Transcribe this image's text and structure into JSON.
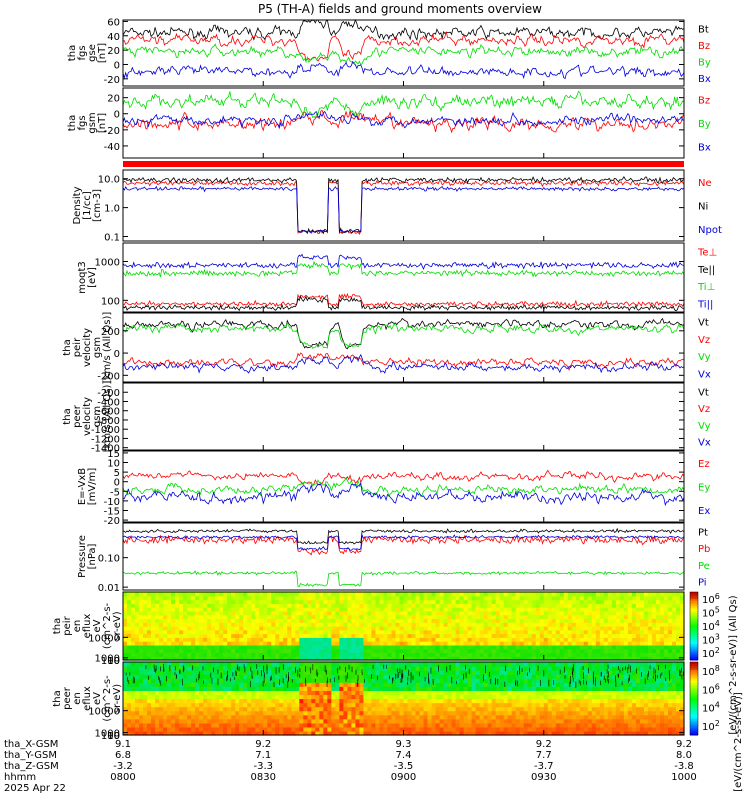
{
  "title": "P5 (TH-A) fields and ground moments overview",
  "chart_data": [
    {
      "id": "fgs_gse",
      "type": "line",
      "ylabel": [
        "tha",
        "fgs",
        "gse",
        "[nT]"
      ],
      "yticks": [
        60,
        40,
        20,
        0,
        -20
      ],
      "ylim": [
        -30,
        62
      ],
      "series": [
        {
          "name": "Bt",
          "color": "#000000",
          "base": 44,
          "noise": 6
        },
        {
          "name": "Bz",
          "color": "#ff0000",
          "base": 34,
          "noise": 6
        },
        {
          "name": "By",
          "color": "#00dd00",
          "base": 18,
          "noise": 6
        },
        {
          "name": "Bx",
          "color": "#0000dd",
          "base": -10,
          "noise": 6
        }
      ]
    },
    {
      "id": "fgs_gsm",
      "type": "line",
      "ylabel": [
        "tha",
        "fgs",
        "gsm",
        "[nT]"
      ],
      "yticks": [
        20,
        0,
        -20,
        -40
      ],
      "ylim": [
        -55,
        32
      ],
      "series": [
        {
          "name": "Bz",
          "color": "#ff0000",
          "base": -12,
          "noise": 7
        },
        {
          "name": "By",
          "color": "#00dd00",
          "base": 15,
          "noise": 7
        },
        {
          "name": "Bx",
          "color": "#0000dd",
          "base": -8,
          "noise": 5
        }
      ]
    },
    {
      "id": "density",
      "type": "line",
      "log": true,
      "ylabel": [
        "Density",
        "[1/cc]",
        "[cm-3]"
      ],
      "yticks": [
        10.0,
        1.0,
        0.1
      ],
      "yticklabels": [
        "10.0",
        "1.0",
        "0.1"
      ],
      "ylim": [
        0.07,
        20
      ],
      "series": [
        {
          "name": "Ne",
          "color": "#ff0000",
          "base": 7,
          "noise": 0.08
        },
        {
          "name": "Ni",
          "color": "#000000",
          "base": 9,
          "noise": 0.08
        },
        {
          "name": "Npot",
          "color": "#0000dd",
          "base": 4.5,
          "noise": 0.06
        }
      ]
    },
    {
      "id": "temp",
      "type": "line",
      "log": true,
      "ylabel": [
        "moqt3",
        "[eV]"
      ],
      "yticks": [
        1000,
        100
      ],
      "yticklabels": [
        "1000",
        "100"
      ],
      "ylim": [
        50,
        3000
      ],
      "series": [
        {
          "name": "Te⊥",
          "color": "#ff0000",
          "base": 80,
          "noise": 0.06
        },
        {
          "name": "Te||",
          "color": "#000000",
          "base": 65,
          "noise": 0.06
        },
        {
          "name": "Ti⊥",
          "color": "#00dd00",
          "base": 500,
          "noise": 0.07
        },
        {
          "name": "Ti||",
          "color": "#0000dd",
          "base": 800,
          "noise": 0.07
        }
      ]
    },
    {
      "id": "peir_vel",
      "type": "line",
      "ylabel": [
        "tha",
        "peir",
        "velocity",
        "gsm",
        "[km/s (All Qs)]"
      ],
      "yticks": [
        200,
        0,
        -200
      ],
      "ylim": [
        -260,
        360
      ],
      "series": [
        {
          "name": "Vt",
          "color": "#000000",
          "base": 260,
          "noise": 30
        },
        {
          "name": "Vz",
          "color": "#ff0000",
          "base": -80,
          "noise": 30
        },
        {
          "name": "Vy",
          "color": "#00dd00",
          "base": 220,
          "noise": 30
        },
        {
          "name": "Vx",
          "color": "#0000dd",
          "base": -130,
          "noise": 30
        }
      ]
    },
    {
      "id": "peer_vel",
      "type": "line",
      "ylabel": [
        "tha",
        "peer",
        "velocity",
        "gsm",
        "[km/s (All Qs)]"
      ],
      "yticks": [
        -200,
        -400,
        -600,
        -800,
        -1000,
        -1200,
        -1400
      ],
      "ylim": [
        -1450,
        0
      ],
      "series": [
        {
          "name": "Vt",
          "color": "#000000"
        },
        {
          "name": "Vz",
          "color": "#ff0000"
        },
        {
          "name": "Vy",
          "color": "#00dd00"
        },
        {
          "name": "Vx",
          "color": "#0000dd"
        }
      ]
    },
    {
      "id": "efield",
      "type": "line",
      "ylabel": [
        "E=-VxB",
        "[mV/m]"
      ],
      "yticks": [
        15,
        10,
        5,
        0,
        -5,
        -10,
        -15,
        -20
      ],
      "ylim": [
        -21,
        16
      ],
      "series": [
        {
          "name": "Ez",
          "color": "#ff0000",
          "base": 3,
          "noise": 1.5
        },
        {
          "name": "Ey",
          "color": "#00dd00",
          "base": -4,
          "noise": 2
        },
        {
          "name": "Ex",
          "color": "#0000dd",
          "base": -8,
          "noise": 2.5
        }
      ]
    },
    {
      "id": "pressure",
      "type": "line",
      "log": true,
      "ylabel": [
        "Pressure",
        "[nPa]"
      ],
      "yticks": [
        0.1,
        0.01
      ],
      "yticklabels": [
        "0.10",
        "0.01"
      ],
      "ylim": [
        0.008,
        1.5
      ],
      "series": [
        {
          "name": "Pt",
          "color": "#000000",
          "base": 0.8,
          "noise": 0.05
        },
        {
          "name": "Pb",
          "color": "#ff0000",
          "base": 0.4,
          "noise": 0.12
        },
        {
          "name": "Pe",
          "color": "#00dd00",
          "base": 0.03,
          "noise": 0.05
        },
        {
          "name": "Pi",
          "color": "#0000dd",
          "base": 0.5,
          "noise": 0.05
        }
      ]
    },
    {
      "id": "peir_spec",
      "type": "heatmap",
      "ylabel": [
        "tha",
        "peir",
        "en",
        "eflux",
        "eV",
        "(cm^2-s-",
        "sr-eV)"
      ],
      "yticks": [
        10000,
        1000,
        100,
        10
      ],
      "yticklabels": [
        "10000",
        "1000",
        "100",
        "10"
      ],
      "ylim": [
        5,
        30000
      ]
    },
    {
      "id": "peer_spec",
      "type": "heatmap",
      "ylabel": [
        "tha",
        "peer",
        "en",
        "eflux",
        "eV",
        "(cm^2-s-",
        "sr-eV)"
      ],
      "yticks": [
        10000,
        1000,
        100,
        10
      ],
      "yticklabels": [
        "10000",
        "1000",
        "100",
        "10"
      ],
      "ylim": [
        5,
        30000
      ]
    }
  ],
  "colorbar_top": {
    "labels": [
      "10^6",
      "10^5",
      "10^4",
      "10^3",
      "10^2"
    ],
    "unit": "[eV/(cm^2-s-sr-eV)] (All Qs)"
  },
  "colorbar_bottom": {
    "labels": [
      "10^8",
      "10^6",
      "10^4",
      "10^2"
    ],
    "unit": "[eV/(cm^2-s-sr-eV)]"
  },
  "xaxis": {
    "rows": [
      {
        "label": "tha_X-GSM",
        "values": [
          "9.1",
          "9.2",
          "9.3",
          "9.2",
          "9.2"
        ]
      },
      {
        "label": "tha_Y-GSM",
        "values": [
          "6.8",
          "7.1",
          "7.4",
          "7.7",
          "8.0"
        ]
      },
      {
        "label": "tha_Z-GSM",
        "values": [
          "-3.2",
          "-3.3",
          "-3.5",
          "-3.7",
          "-3.8"
        ]
      },
      {
        "label": "hhmm",
        "values": [
          "0800",
          "0830",
          "0900",
          "0930",
          "1000"
        ]
      }
    ],
    "date": "2025 Apr 22"
  }
}
